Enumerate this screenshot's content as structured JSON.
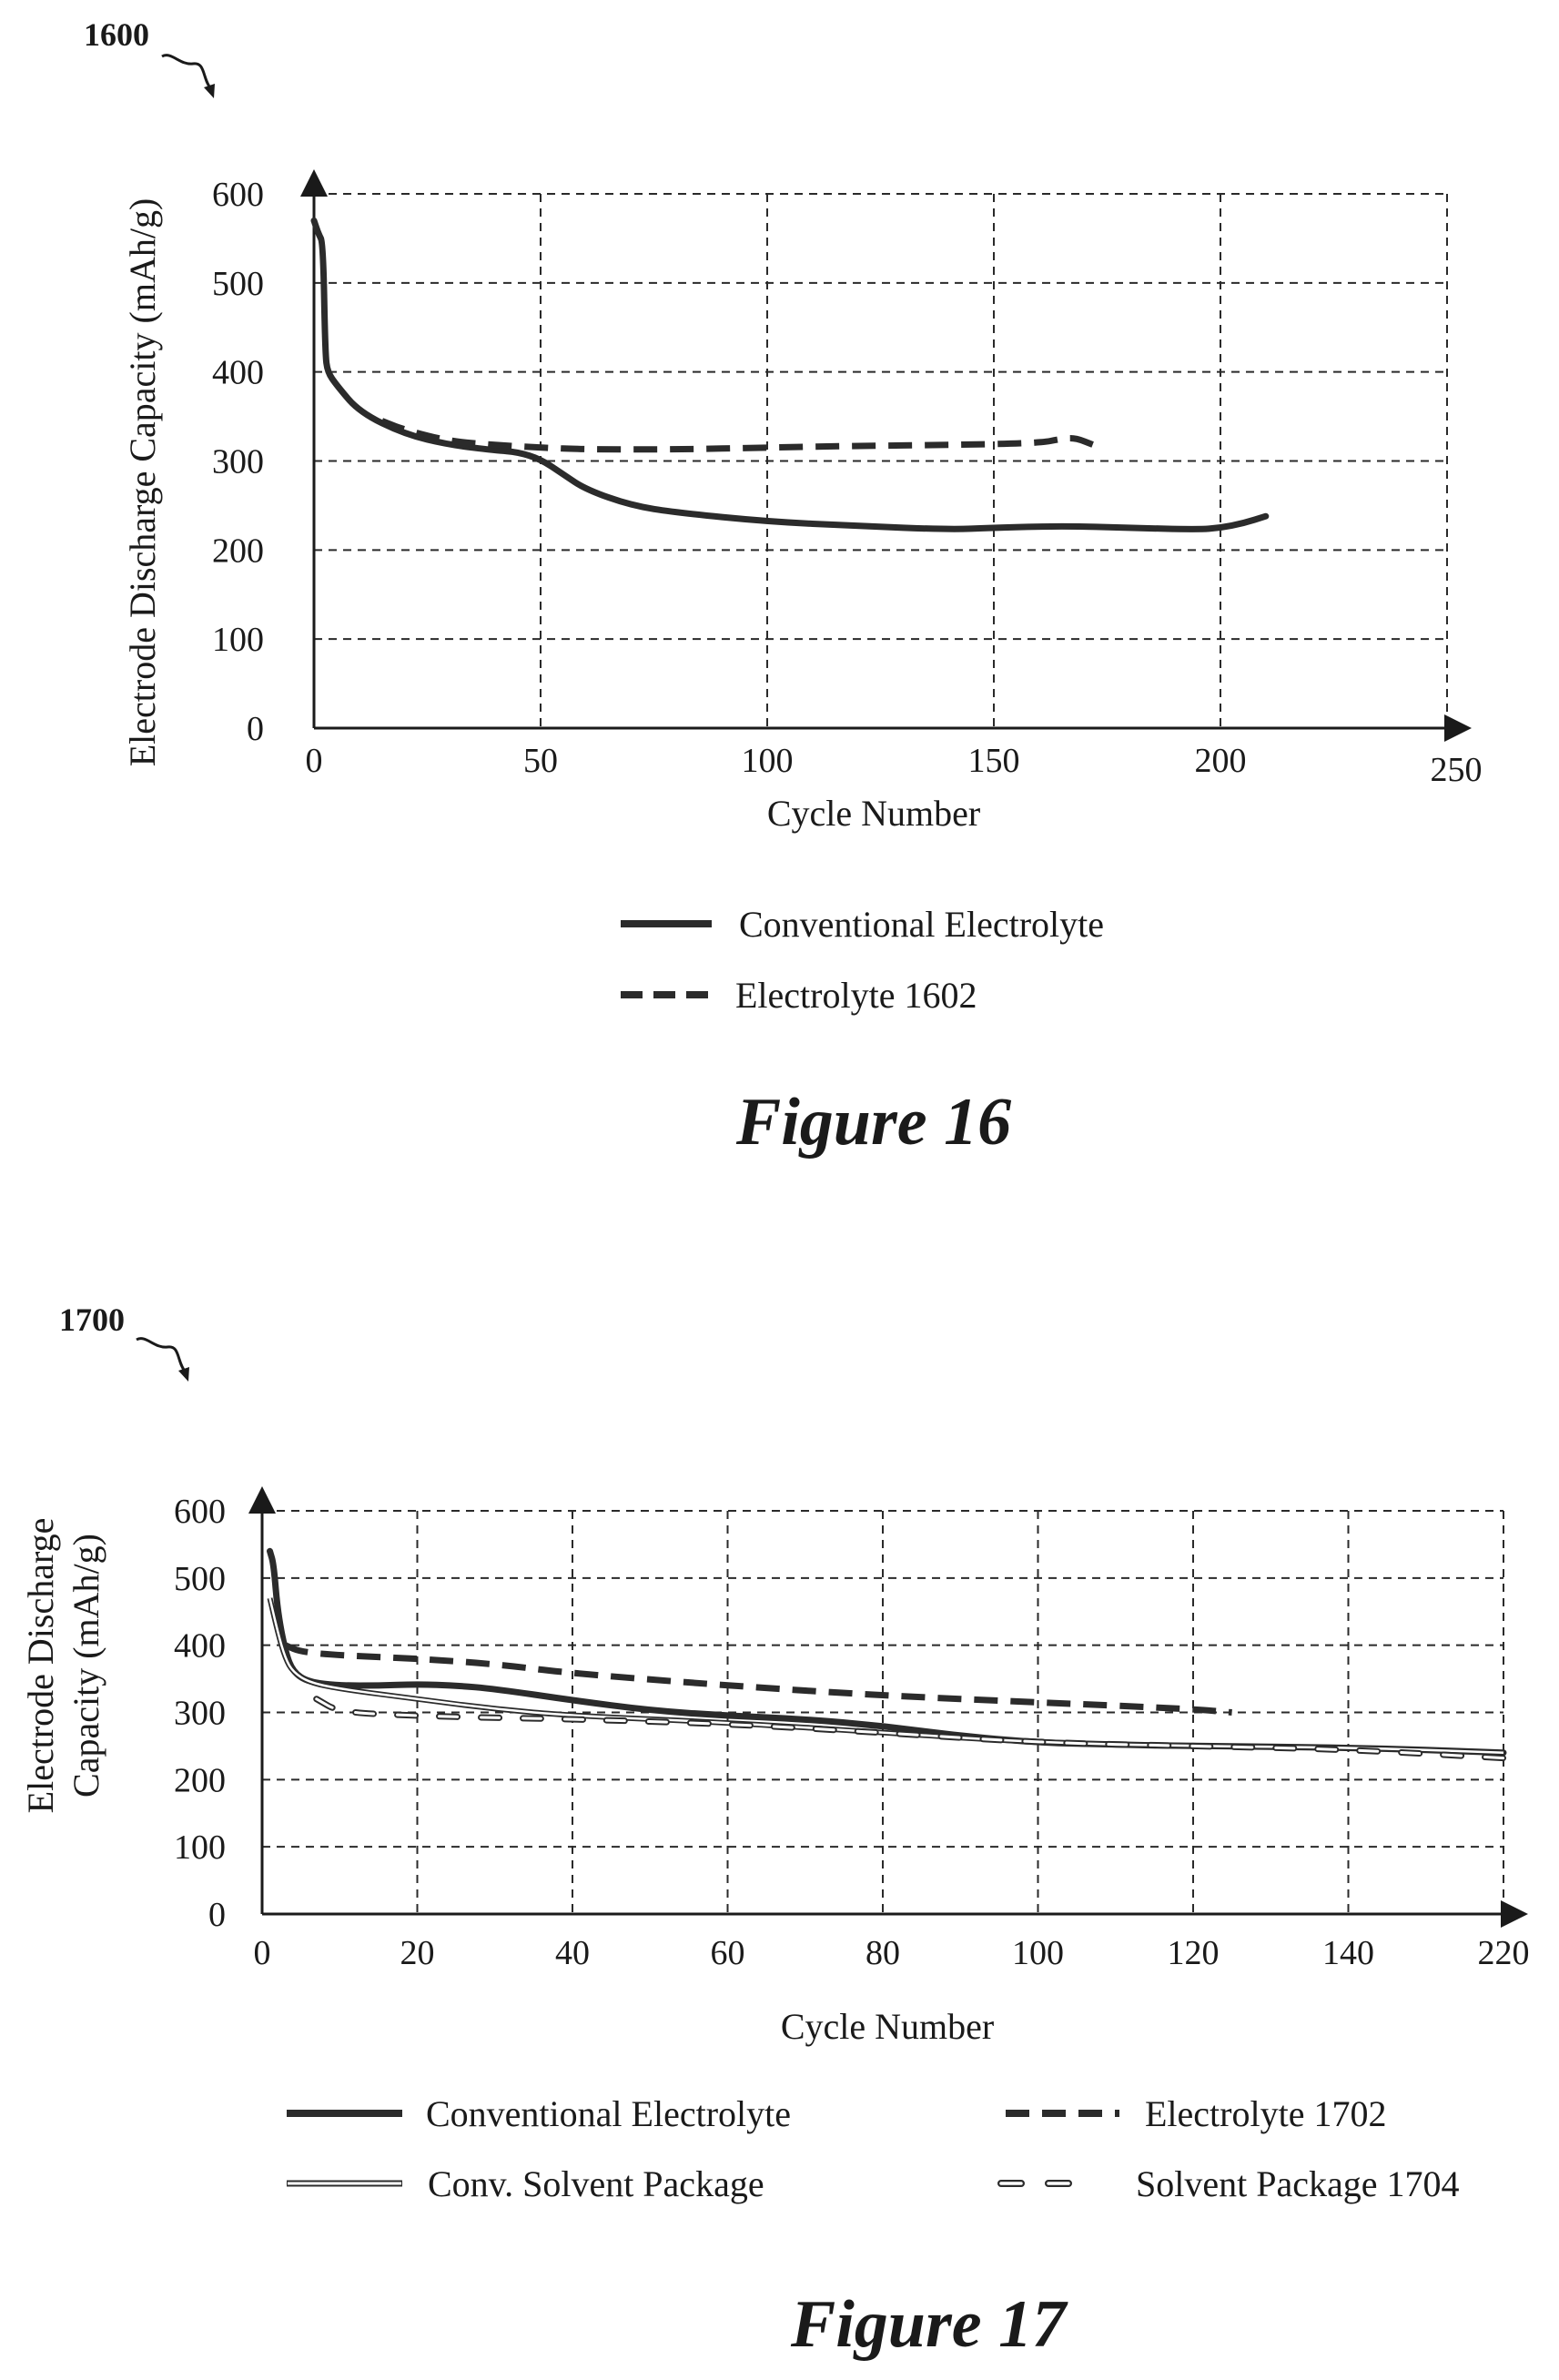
{
  "chart_data": [
    {
      "type": "line",
      "reference_numeral": "1600",
      "caption": "Figure 16",
      "xlabel": "Cycle Number",
      "ylabel": "Electrode Discharge Capacity (mAh/g)",
      "xlim": [
        0,
        250
      ],
      "ylim": [
        0,
        600
      ],
      "x_ticks": [
        "0",
        "50",
        "100",
        "150",
        "200",
        "250"
      ],
      "y_ticks": [
        "0",
        "100",
        "200",
        "300",
        "400",
        "500",
        "600"
      ],
      "grid": true,
      "legend_position": "bottom",
      "series": [
        {
          "name": "Conventional Electrolyte",
          "style": "solid-thick",
          "color": "#2b2b2b",
          "x": [
            0,
            1,
            2,
            2.5,
            3,
            5,
            10,
            20,
            30,
            40,
            45,
            50,
            55,
            60,
            70,
            80,
            100,
            120,
            140,
            150,
            165,
            180,
            195,
            200,
            205,
            210
          ],
          "y": [
            570,
            555,
            545,
            420,
            400,
            385,
            355,
            330,
            318,
            312,
            310,
            302,
            285,
            268,
            250,
            242,
            232,
            227,
            223,
            225,
            227,
            225,
            223,
            225,
            230,
            238
          ]
        },
        {
          "name": "Electrolyte 1602",
          "style": "dashed-thick",
          "color": "#2b2b2b",
          "x": [
            15,
            20,
            30,
            40,
            50,
            60,
            80,
            100,
            120,
            140,
            160,
            165,
            168,
            172
          ],
          "y": [
            345,
            335,
            322,
            318,
            315,
            313,
            313,
            315,
            317,
            318,
            320,
            325,
            326,
            318
          ]
        }
      ]
    },
    {
      "type": "line",
      "reference_numeral": "1700",
      "caption": "Figure 17",
      "xlabel": "Cycle Number",
      "ylabel": [
        "Electrode Discharge",
        "Capacity (mAh/g)"
      ],
      "xlim": [
        0,
        220
      ],
      "ylim": [
        0,
        600
      ],
      "x_ticks": [
        "0",
        "20",
        "40",
        "60",
        "80",
        "100",
        "120",
        "140",
        "220"
      ],
      "y_ticks": [
        "0",
        "100",
        "200",
        "300",
        "400",
        "500",
        "600"
      ],
      "grid": true,
      "legend_position": "bottom",
      "series": [
        {
          "name": "Conventional Electrolyte",
          "style": "solid-thick",
          "color": "#2b2b2b",
          "x": [
            1,
            1.5,
            2,
            3,
            4,
            6,
            10,
            15,
            20,
            25,
            30,
            40,
            50,
            60,
            70,
            80,
            90,
            100,
            110,
            120,
            140,
            160
          ],
          "y": [
            540,
            520,
            450,
            390,
            360,
            345,
            340,
            340,
            342,
            340,
            335,
            318,
            303,
            295,
            290,
            280,
            265,
            255,
            252,
            250,
            248,
            240
          ]
        },
        {
          "name": "Electrolyte 1702",
          "style": "dashed-thick",
          "color": "#2b2b2b",
          "x": [
            3,
            5,
            10,
            20,
            30,
            40,
            60,
            80,
            100,
            120,
            125
          ],
          "y": [
            400,
            390,
            385,
            380,
            372,
            358,
            340,
            325,
            315,
            305,
            300
          ]
        },
        {
          "name": "Conv. Solvent Package",
          "style": "double-line",
          "color": "#2b2b2b",
          "x": [
            1,
            2,
            3,
            4,
            6,
            10,
            20,
            30,
            40,
            60,
            80,
            100,
            120,
            140,
            160
          ],
          "y": [
            470,
            420,
            380,
            360,
            345,
            335,
            320,
            305,
            295,
            285,
            270,
            255,
            250,
            248,
            240
          ]
        },
        {
          "name": "Solvent Package 1704",
          "style": "hollow-dash",
          "color": "#2b2b2b",
          "x": [
            7,
            10,
            20,
            30,
            40,
            60,
            80,
            100,
            120,
            140,
            160
          ],
          "y": [
            320,
            300,
            295,
            292,
            290,
            283,
            270,
            255,
            250,
            245,
            232
          ]
        }
      ]
    }
  ]
}
